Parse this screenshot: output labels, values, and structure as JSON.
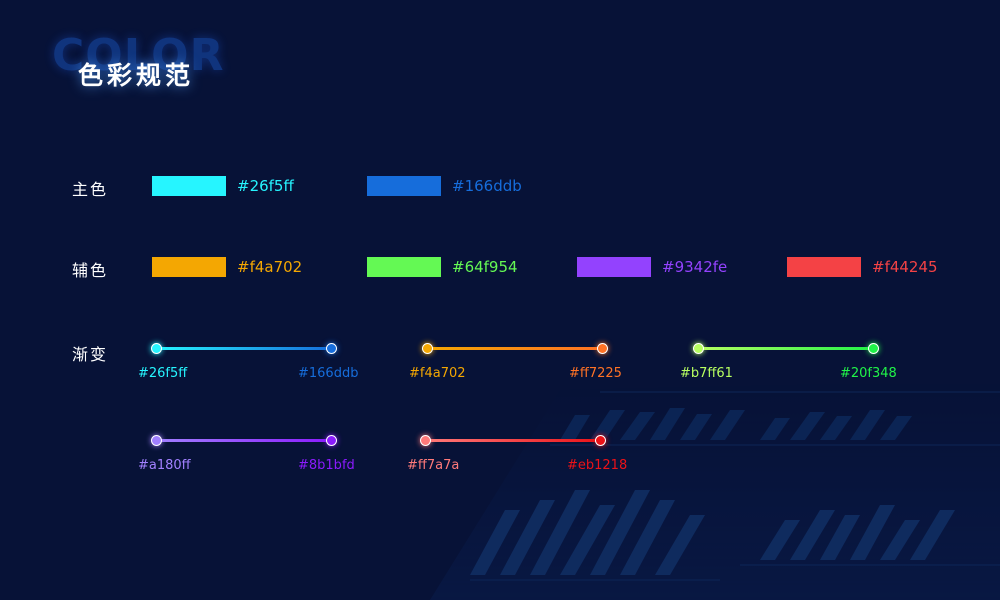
{
  "header": {
    "ghost_text": "COLOR",
    "title": "色彩规范"
  },
  "primary": {
    "label": "主色",
    "colors": [
      {
        "hex": "#26f5ff",
        "color": "#26f5ff"
      },
      {
        "hex": "#166ddb",
        "color": "#166ddb"
      }
    ]
  },
  "secondary": {
    "label": "辅色",
    "colors": [
      {
        "hex": "#f4a702",
        "color": "#f4a702"
      },
      {
        "hex": "#64f954",
        "color": "#64f954"
      },
      {
        "hex": "#9342fe",
        "color": "#9342fe"
      },
      {
        "hex": "#f44245",
        "color": "#f44245"
      }
    ]
  },
  "gradient": {
    "label": "渐变",
    "items": [
      {
        "start": "#26f5ff",
        "end": "#166ddb",
        "start_color": "#26f5ff",
        "end_color": "#166ddb"
      },
      {
        "start": "#f4a702",
        "end": "#ff7225",
        "start_color": "#f4a702",
        "end_color": "#ff7225"
      },
      {
        "start": "#b7ff61",
        "end": "#20f348",
        "start_color": "#b7ff61",
        "end_color": "#20f348"
      },
      {
        "start": "#a180ff",
        "end": "#8b1bfd",
        "start_color": "#a180ff",
        "end_color": "#8b1bfd"
      },
      {
        "start": "#ff7a7a",
        "end": "#eb1218",
        "start_color": "#ff7a7a",
        "end_color": "#eb1218"
      }
    ]
  },
  "colors": {
    "background": "#071237"
  }
}
